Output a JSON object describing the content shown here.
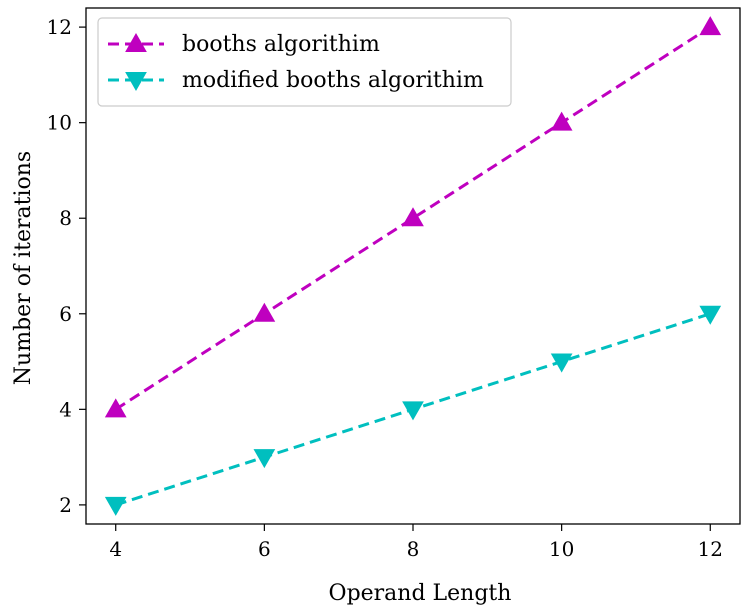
{
  "chart_data": {
    "type": "line",
    "xlabel": "Operand Length",
    "ylabel": "Number of iterations",
    "x": [
      4,
      6,
      8,
      10,
      12
    ],
    "xticks": [
      4,
      6,
      8,
      10,
      12
    ],
    "yticks": [
      2,
      4,
      6,
      8,
      10,
      12
    ],
    "xlim": [
      3.6,
      12.4
    ],
    "ylim": [
      1.6,
      12.4
    ],
    "grid": false,
    "legend_position": "top-left",
    "series": [
      {
        "name": "booths algorithim",
        "values": [
          4,
          6,
          8,
          10,
          12
        ],
        "color": "#bf00bf",
        "marker": "triangle-up",
        "linestyle": "dashed"
      },
      {
        "name": "modified booths algorithim",
        "values": [
          2,
          3,
          4,
          5,
          6
        ],
        "color": "#00bfbf",
        "marker": "triangle-down",
        "linestyle": "dashed"
      }
    ]
  }
}
